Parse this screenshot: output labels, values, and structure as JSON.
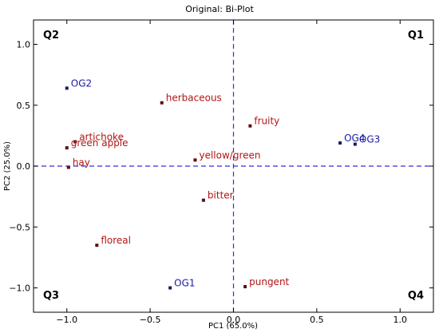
{
  "chart_data": {
    "type": "scatter",
    "title": "Original: Bi-Plot",
    "xlabel": "PC1 (65.0%)",
    "ylabel": "PC2 (25.0%)",
    "xlim": [
      -1.2,
      1.2
    ],
    "ylim": [
      -1.2,
      1.2
    ],
    "xticks": [
      -1.0,
      -0.5,
      0.0,
      0.5,
      1.0
    ],
    "xtick_labels": [
      "−1.0",
      "−0.5",
      "0.0",
      "0.5",
      "1.0"
    ],
    "yticks": [
      1.0,
      0.5,
      0.0,
      -0.5,
      -1.0
    ],
    "ytick_labels": [
      "1.0",
      "0.5",
      "0.0",
      "−0.5",
      "−1.0"
    ],
    "grid": false,
    "reference_lines": {
      "x": 0,
      "y": 0,
      "style": "dashed",
      "color": "#3333cc"
    },
    "quadrants": [
      {
        "label": "Q1",
        "corner": "top-right"
      },
      {
        "label": "Q2",
        "corner": "top-left"
      },
      {
        "label": "Q3",
        "corner": "bottom-left"
      },
      {
        "label": "Q4",
        "corner": "bottom-right"
      }
    ],
    "series": [
      {
        "color": "#1a1aa6",
        "marker_color": "#1a1a66",
        "points": [
          {
            "label": "OG2",
            "x": -1.0,
            "y": 0.64
          },
          {
            "label": "OG1",
            "x": -0.38,
            "y": -1.0
          },
          {
            "label": "OG4",
            "x": 0.64,
            "y": 0.19
          },
          {
            "label": "OG3",
            "x": 0.73,
            "y": 0.18
          }
        ]
      },
      {
        "color": "#b01515",
        "marker_color": "#5a1010",
        "points": [
          {
            "label": "herbaceous",
            "x": -0.43,
            "y": 0.52
          },
          {
            "label": "fruity",
            "x": 0.1,
            "y": 0.33
          },
          {
            "label": "artichoke",
            "x": -0.95,
            "y": 0.2
          },
          {
            "label": "green apple",
            "x": -1.0,
            "y": 0.15
          },
          {
            "label": "hay",
            "x": -0.99,
            "y": -0.01
          },
          {
            "label": "yellow/green",
            "x": -0.23,
            "y": 0.05
          },
          {
            "label": "bitter",
            "x": -0.18,
            "y": -0.28
          },
          {
            "label": "floreal",
            "x": -0.82,
            "y": -0.65
          },
          {
            "label": "pungent",
            "x": 0.07,
            "y": -0.99
          }
        ]
      }
    ]
  }
}
